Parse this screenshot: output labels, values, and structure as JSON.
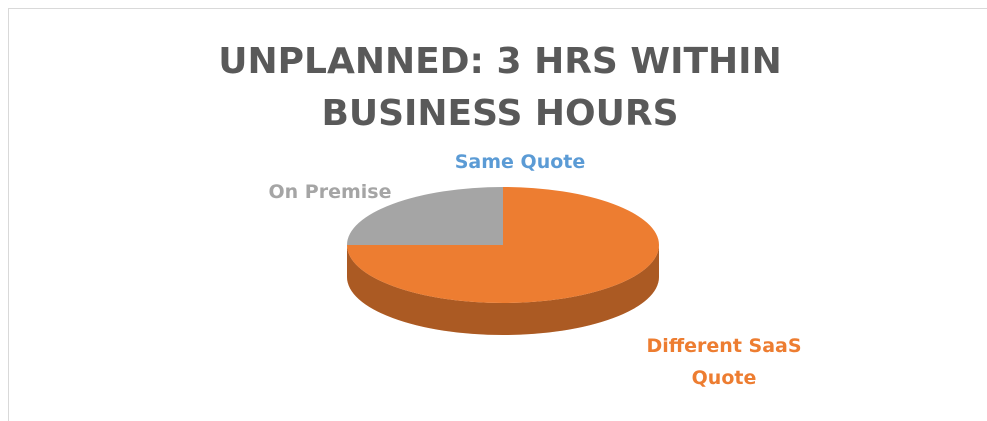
{
  "chart_data": {
    "type": "pie3d",
    "title": "UNPLANNED: 3 HRS WITHIN BUSINESS HOURS",
    "categories": [
      "Same Quote",
      "Different SaaS Quote",
      "On Premise"
    ],
    "series": [
      {
        "name": "Share",
        "values": [
          0,
          75,
          25
        ],
        "colors": [
          "#5b9bd5",
          "#ed7d31",
          "#a5a5a5"
        ]
      }
    ]
  }
}
